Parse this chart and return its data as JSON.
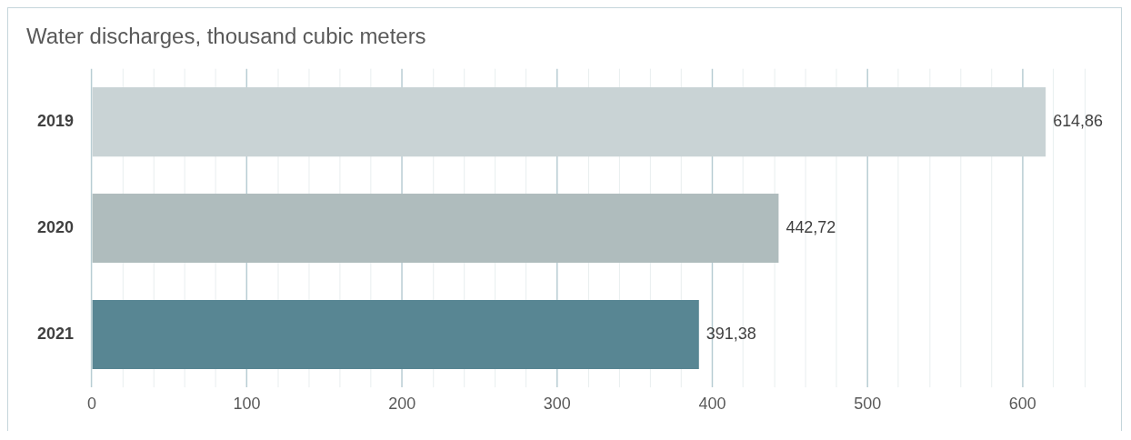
{
  "chart_data": {
    "type": "bar",
    "orientation": "horizontal",
    "title": "Water discharges, thousand cubic meters",
    "categories": [
      "2019",
      "2020",
      "2021"
    ],
    "values": [
      614.86,
      442.72,
      391.38
    ],
    "colors": [
      "#c9d3d5",
      "#afbcbd",
      "#588693"
    ],
    "value_labels": [
      "614,86",
      "442,72",
      "391,38"
    ],
    "xlim": [
      0,
      640
    ],
    "xticks": [
      0,
      {
        "value": 20,
        "label": null
      },
      {
        "value": 40,
        "label": null
      },
      {
        "value": 60,
        "label": null
      },
      {
        "value": 80,
        "label": null
      },
      100,
      {
        "value": 120,
        "label": null
      },
      {
        "value": 140,
        "label": null
      },
      {
        "value": 160,
        "label": null
      },
      {
        "value": 180,
        "label": null
      },
      200,
      {
        "value": 220,
        "label": null
      },
      {
        "value": 240,
        "label": null
      },
      {
        "value": 260,
        "label": null
      },
      {
        "value": 280,
        "label": null
      },
      300,
      {
        "value": 320,
        "label": null
      },
      {
        "value": 340,
        "label": null
      },
      {
        "value": 360,
        "label": null
      },
      {
        "value": 380,
        "label": null
      },
      400,
      {
        "value": 420,
        "label": null
      },
      {
        "value": 440,
        "label": null
      },
      {
        "value": 460,
        "label": null
      },
      {
        "value": 480,
        "label": null
      },
      500,
      {
        "value": 520,
        "label": null
      },
      {
        "value": 540,
        "label": null
      },
      {
        "value": 560,
        "label": null
      },
      {
        "value": 580,
        "label": null
      },
      600,
      {
        "value": 620,
        "label": null
      },
      {
        "value": 640,
        "label": null
      }
    ],
    "grid": "x",
    "legend": false
  }
}
